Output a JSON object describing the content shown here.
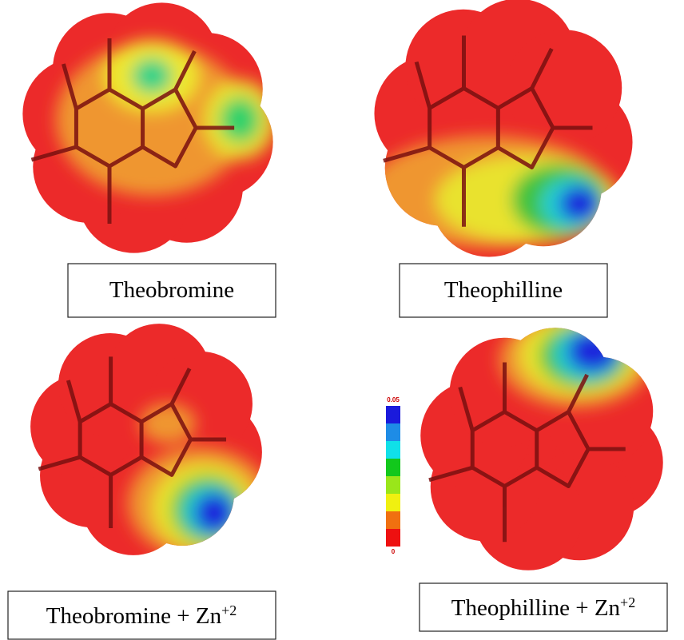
{
  "panels": [
    {
      "label": "Theobromine"
    },
    {
      "label": "Theophilline"
    },
    {
      "label": "Theobromine + Zn",
      "superscript": "+2"
    },
    {
      "label": "Theophilline + Zn",
      "superscript": "+2"
    }
  ],
  "color_scale": {
    "max": "0.05",
    "min": "0"
  }
}
